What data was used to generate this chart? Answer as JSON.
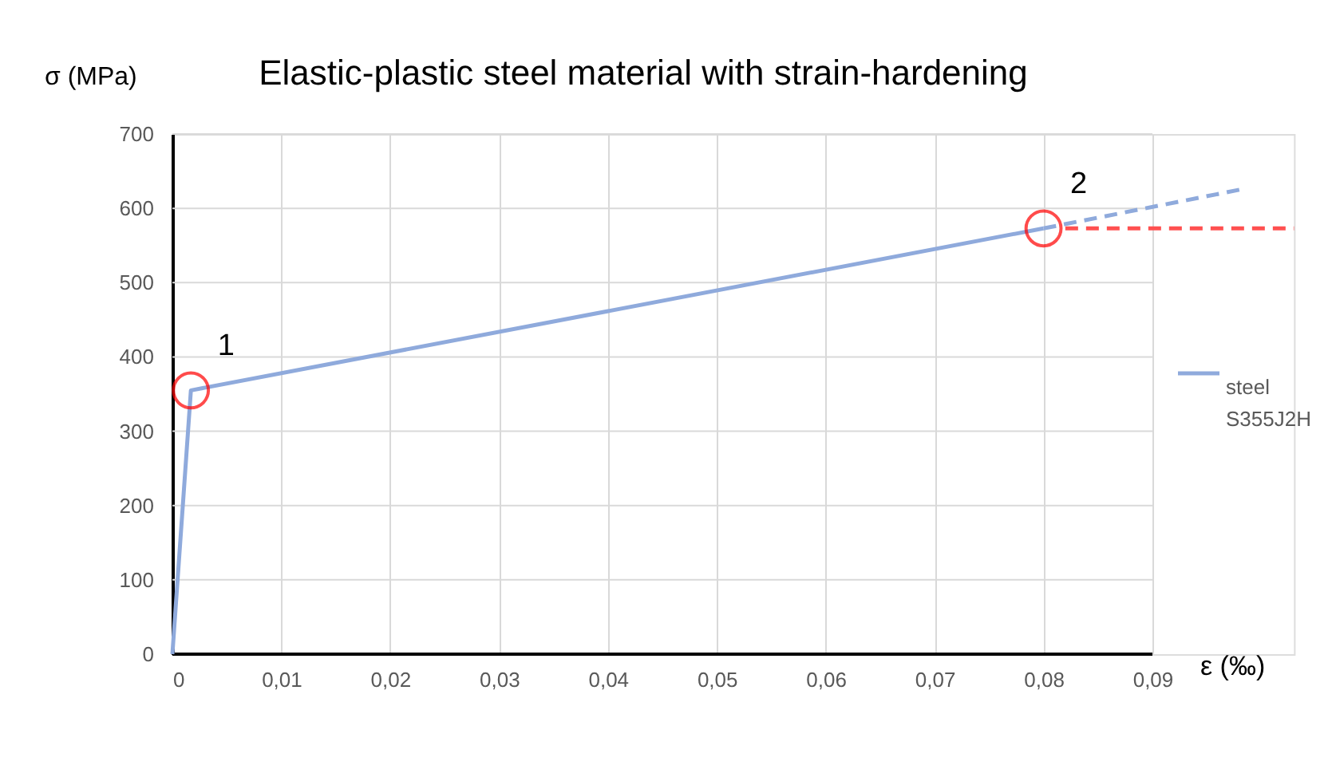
{
  "chart_data": {
    "type": "line",
    "title": "Elastic-plastic steel material with strain-hardening",
    "xlabel": "ε (‰)",
    "ylabel": "σ (MPa)",
    "xlim": [
      0,
      0.103
    ],
    "ylim": [
      0,
      700
    ],
    "xticks": [
      0,
      {
        "value": 0.01,
        "label": "0,01"
      },
      {
        "value": 0.02,
        "label": "0,02"
      },
      {
        "value": 0.03,
        "label": "0,03"
      },
      {
        "value": 0.04,
        "label": "0,04"
      },
      {
        "value": 0.05,
        "label": "0,05"
      },
      {
        "value": 0.06,
        "label": "0,06"
      },
      {
        "value": 0.07,
        "label": "0,07"
      },
      {
        "value": 0.08,
        "label": "0,08"
      },
      {
        "value": 0.09,
        "label": "0,09"
      }
    ],
    "yticks": [
      0,
      100,
      200,
      300,
      400,
      500,
      600,
      700
    ],
    "grid": true,
    "legend": "right",
    "series": [
      {
        "name": "steel S355J2H",
        "color": "#8faadc",
        "x": [
          0,
          0.0017,
          0.08
        ],
        "values": [
          0,
          355,
          573
        ],
        "line_style": "solid",
        "marker": "none"
      },
      {
        "color": "#8faadc",
        "x": [
          0.08,
          0.098
        ],
        "values": [
          573,
          625
        ],
        "line_style": "dashed",
        "marker": "none"
      },
      {
        "color": "#ff5050",
        "x": [
          0.082,
          0.103
        ],
        "values": [
          573,
          573
        ],
        "line_style": "dashed",
        "marker": "none"
      },
      {
        "type": "scatter",
        "color": "#ff0000",
        "x": [
          0.0017,
          0.08
        ],
        "values": [
          355,
          573
        ],
        "marker": "circle"
      }
    ],
    "annotations": [
      {
        "text": "1",
        "x": 0.0017,
        "y": 355
      },
      {
        "text": "2",
        "x": 0.08,
        "y": 573
      }
    ]
  }
}
